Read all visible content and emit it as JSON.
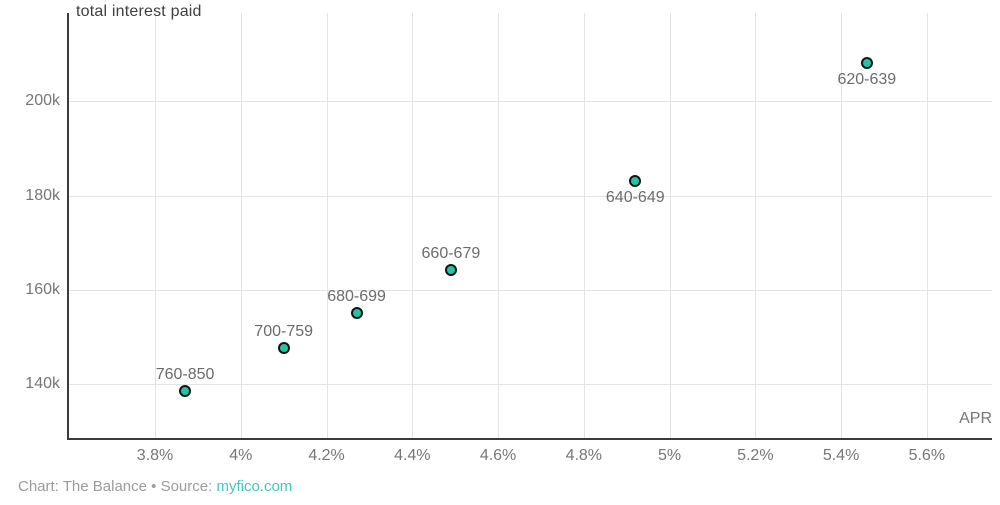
{
  "chart_data": {
    "type": "scatter",
    "title": "total interest paid",
    "xlabel": "APR",
    "ylabel": "total interest paid",
    "grid": true,
    "xlim": [
      3.597,
      5.752
    ],
    "ylim": [
      128.4,
      218.7
    ],
    "x_tick_values": [
      3.8,
      4.0,
      4.2,
      4.4,
      4.6,
      4.8,
      5.0,
      5.2,
      5.4,
      5.6
    ],
    "x_tick_labels": [
      "3.8%",
      "4%",
      "4.2%",
      "4.4%",
      "4.6%",
      "4.8%",
      "5%",
      "5.2%",
      "5.4%",
      "5.6%"
    ],
    "y_tick_values": [
      140,
      160,
      180,
      200
    ],
    "y_tick_labels": [
      "140k",
      "160k",
      "180k",
      "200k"
    ],
    "points": [
      {
        "label": "760-850",
        "apr_percent": 3.87,
        "interest_paid_k": 138.5,
        "label_position": "above"
      },
      {
        "label": "700-759",
        "apr_percent": 4.1,
        "interest_paid_k": 147.6,
        "label_position": "above"
      },
      {
        "label": "680-699",
        "apr_percent": 4.27,
        "interest_paid_k": 155.2,
        "label_position": "above"
      },
      {
        "label": "660-679",
        "apr_percent": 4.49,
        "interest_paid_k": 164.3,
        "label_position": "above"
      },
      {
        "label": "640-649",
        "apr_percent": 4.92,
        "interest_paid_k": 183.0,
        "label_position": "below"
      },
      {
        "label": "620-639",
        "apr_percent": 5.46,
        "interest_paid_k": 208.0,
        "label_position": "below"
      }
    ]
  },
  "colors": {
    "background": "#ffffff",
    "axis": "#3b3b3b",
    "grid": "#e3e3e3",
    "tick_text": "#767676",
    "point_label_text": "#6b6b6b",
    "title_text": "#3f3f3f",
    "footer_text": "#9b9b9b",
    "link": "#46c6be",
    "marker_fill": "#22c4a3",
    "marker_stroke": "#141414"
  },
  "footer": {
    "credit": "Chart: The Balance",
    "separator": "•",
    "source_prefix": "Source:",
    "source_link": "myfico.com"
  }
}
